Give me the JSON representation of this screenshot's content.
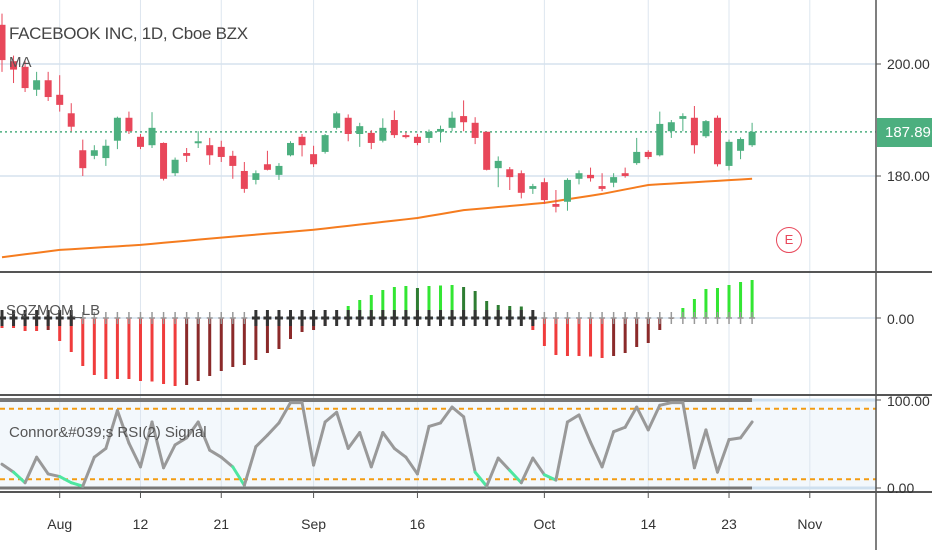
{
  "header": {
    "title": "FACEBOOK INC, 1D, Cboe BZX",
    "ma_label": "MA",
    "momentum_label": "SQZMOM_LB",
    "rsi_label": "Connor&#039;s RSI(2) Signal",
    "earnings_badge": "E"
  },
  "colors": {
    "up": "#4caf7f",
    "down": "#e8475a",
    "ma": "#f57c1f",
    "lime": "#33e633",
    "green": "#2e7d32",
    "red": "#f03c3c",
    "maroon": "#8b2a2a",
    "rsi_line": "#999999",
    "rsi_oversold": "#4ee6a0",
    "band": "#f39c12"
  },
  "price_axis": {
    "labels": [
      {
        "value": 200,
        "text": "200.00"
      },
      {
        "value": 180,
        "text": "180.00"
      }
    ],
    "last_price": 187.89,
    "last_price_text": "187.89"
  },
  "momentum_axis": {
    "zero_text": "0.00"
  },
  "rsi_axis": {
    "top_text": "100.00",
    "bottom_text": "0.00",
    "upper_band": 90,
    "lower_band": 10
  },
  "time_axis": {
    "labels": [
      {
        "bar": 5,
        "text": "Aug"
      },
      {
        "bar": 12,
        "text": "12"
      },
      {
        "bar": 19,
        "text": "21"
      },
      {
        "bar": 27,
        "text": "Sep"
      },
      {
        "bar": 36,
        "text": "16"
      },
      {
        "bar": 47,
        "text": "Oct"
      },
      {
        "bar": 56,
        "text": "14"
      },
      {
        "bar": 63,
        "text": "23"
      },
      {
        "bar": 70,
        "text": "Nov"
      }
    ]
  },
  "chart_data": {
    "type": "candlestick",
    "title": "FACEBOOK INC, 1D, Cboe BZX",
    "ohlc": [
      [
        207,
        209,
        198.6,
        200.7
      ],
      [
        200.5,
        201.5,
        196.6,
        199
      ],
      [
        199.5,
        200.5,
        195,
        195.7
      ],
      [
        195.4,
        198.6,
        194.3,
        197.1
      ],
      [
        197.1,
        198.6,
        193.4,
        194.1
      ],
      [
        194.5,
        198,
        191.5,
        192.7
      ],
      [
        191.2,
        193,
        188,
        188.8
      ],
      [
        184.6,
        186.5,
        180,
        181.4
      ],
      [
        183.6,
        185.5,
        183,
        184.6
      ],
      [
        183.2,
        186.5,
        181.8,
        185.4
      ],
      [
        186.3,
        190.6,
        184.8,
        190.4
      ],
      [
        190.4,
        191.5,
        187.5,
        188
      ],
      [
        187,
        187.5,
        184.8,
        185.2
      ],
      [
        185.5,
        191.4,
        185,
        188.6
      ],
      [
        185.9,
        186,
        179.2,
        179.5
      ],
      [
        180.5,
        183.3,
        180,
        182.9
      ],
      [
        184.1,
        185,
        182.5,
        183.6
      ],
      [
        185.9,
        188,
        185,
        186.2
      ],
      [
        185.5,
        186.8,
        182,
        183.7
      ],
      [
        185.2,
        186.3,
        182.5,
        183.4
      ],
      [
        183.6,
        184.5,
        179.5,
        181.8
      ],
      [
        180.9,
        182.5,
        177,
        177.7
      ],
      [
        179.3,
        181,
        178.5,
        180.5
      ],
      [
        182.1,
        184.5,
        181,
        181.1
      ],
      [
        180.2,
        182.3,
        179.3,
        181.8
      ],
      [
        183.7,
        186.2,
        183.5,
        185.9
      ],
      [
        187,
        187.5,
        183.5,
        185.5
      ],
      [
        183.9,
        185.4,
        181.6,
        182.1
      ],
      [
        184.3,
        187.5,
        184,
        187.3
      ],
      [
        188.6,
        191.5,
        188.3,
        191.2
      ],
      [
        190.4,
        191,
        186.2,
        187.5
      ],
      [
        187.5,
        189.5,
        185.2,
        188.9
      ],
      [
        187.7,
        188.2,
        184.8,
        185.9
      ],
      [
        186.3,
        190.3,
        186,
        188.6
      ],
      [
        190,
        191.7,
        186.8,
        187.3
      ],
      [
        187.3,
        187.8,
        186.7,
        187
      ],
      [
        187,
        187.5,
        185.5,
        185.9
      ],
      [
        186.8,
        188.3,
        185.9,
        187.9
      ],
      [
        187.9,
        189,
        186,
        188.4
      ],
      [
        188.6,
        191.5,
        188,
        190.4
      ],
      [
        190.7,
        193.5,
        188,
        189.6
      ],
      [
        189.5,
        190.5,
        185.7,
        186.8
      ],
      [
        187.9,
        187.9,
        181,
        181.1
      ],
      [
        181.4,
        183.5,
        178,
        182.7
      ],
      [
        181.2,
        181.6,
        177.5,
        179.8
      ],
      [
        180.5,
        181,
        176,
        177
      ],
      [
        177.7,
        178.6,
        176.8,
        178.2
      ],
      [
        178.9,
        179.6,
        175,
        175.7
      ],
      [
        175,
        177.5,
        173.5,
        174.5
      ],
      [
        175.4,
        179.6,
        173.8,
        179.3
      ],
      [
        179.5,
        181,
        178.5,
        180.5
      ],
      [
        180.2,
        181.5,
        179,
        179.6
      ],
      [
        178.2,
        180.5,
        177.3,
        177.7
      ],
      [
        178.8,
        180.5,
        178,
        179.8
      ],
      [
        180.5,
        181.5,
        179.7,
        180
      ],
      [
        182.3,
        186.8,
        182,
        184.3
      ],
      [
        184.3,
        184.6,
        183,
        183.4
      ],
      [
        183.7,
        191.5,
        183.5,
        189.3
      ],
      [
        188,
        190,
        186.8,
        189.6
      ],
      [
        190.2,
        191.2,
        188,
        190.7
      ],
      [
        190.4,
        192.5,
        184,
        185.5
      ],
      [
        187.1,
        190,
        186.8,
        189.8
      ],
      [
        190.4,
        190.8,
        181.7,
        182.1
      ],
      [
        181.8,
        186.5,
        181,
        186.1
      ],
      [
        184.5,
        186.9,
        183,
        186.6
      ],
      [
        185.5,
        189.5,
        185.2,
        187.9
      ]
    ],
    "ma_anchors": [
      [
        0,
        165.5
      ],
      [
        5,
        166.8
      ],
      [
        12,
        167.7
      ],
      [
        19,
        169
      ],
      [
        27,
        170.4
      ],
      [
        36,
        172.5
      ],
      [
        40,
        173.9
      ],
      [
        47,
        175.2
      ],
      [
        52,
        176.8
      ],
      [
        56,
        178.4
      ],
      [
        65,
        179.5
      ]
    ],
    "momentum": [
      -10,
      -10,
      -13,
      -13,
      -12,
      -23,
      -34,
      -48,
      -57,
      -61,
      -61,
      -61,
      -63,
      -63.5,
      -66,
      -68,
      -67,
      -63,
      -58,
      -53,
      -49,
      -47,
      -42,
      -35,
      -31,
      -21,
      -14,
      -12,
      -8,
      -2,
      12,
      18,
      23,
      28,
      31,
      32,
      30,
      32,
      32.5,
      33,
      31,
      27,
      17,
      13,
      12,
      11.5,
      -12,
      -28,
      -37,
      -38,
      -38,
      -38.5,
      -40,
      -38,
      -35,
      -29,
      -25,
      -12,
      -1,
      10,
      19,
      29,
      30,
      33,
      36,
      38
    ],
    "squeeze_on_ranges": [
      [
        0,
        6
      ],
      [
        22,
        46
      ]
    ],
    "rsi": [
      27,
      18,
      6,
      35,
      16,
      13,
      6,
      2,
      35,
      45,
      88,
      51,
      24,
      75,
      23,
      49,
      57,
      75,
      43,
      35,
      24,
      3,
      47,
      60,
      74,
      97,
      97,
      26,
      75,
      86,
      45,
      63,
      24,
      63,
      45,
      35,
      16,
      70,
      74,
      92,
      81,
      18,
      2,
      34,
      20,
      6,
      34,
      15,
      9,
      75,
      83,
      52,
      24,
      64,
      69,
      92,
      66,
      94,
      97,
      97,
      23,
      66,
      18,
      55,
      57,
      75
    ],
    "price_range": [
      159,
      213
    ],
    "rsi_range": [
      0,
      100
    ]
  }
}
